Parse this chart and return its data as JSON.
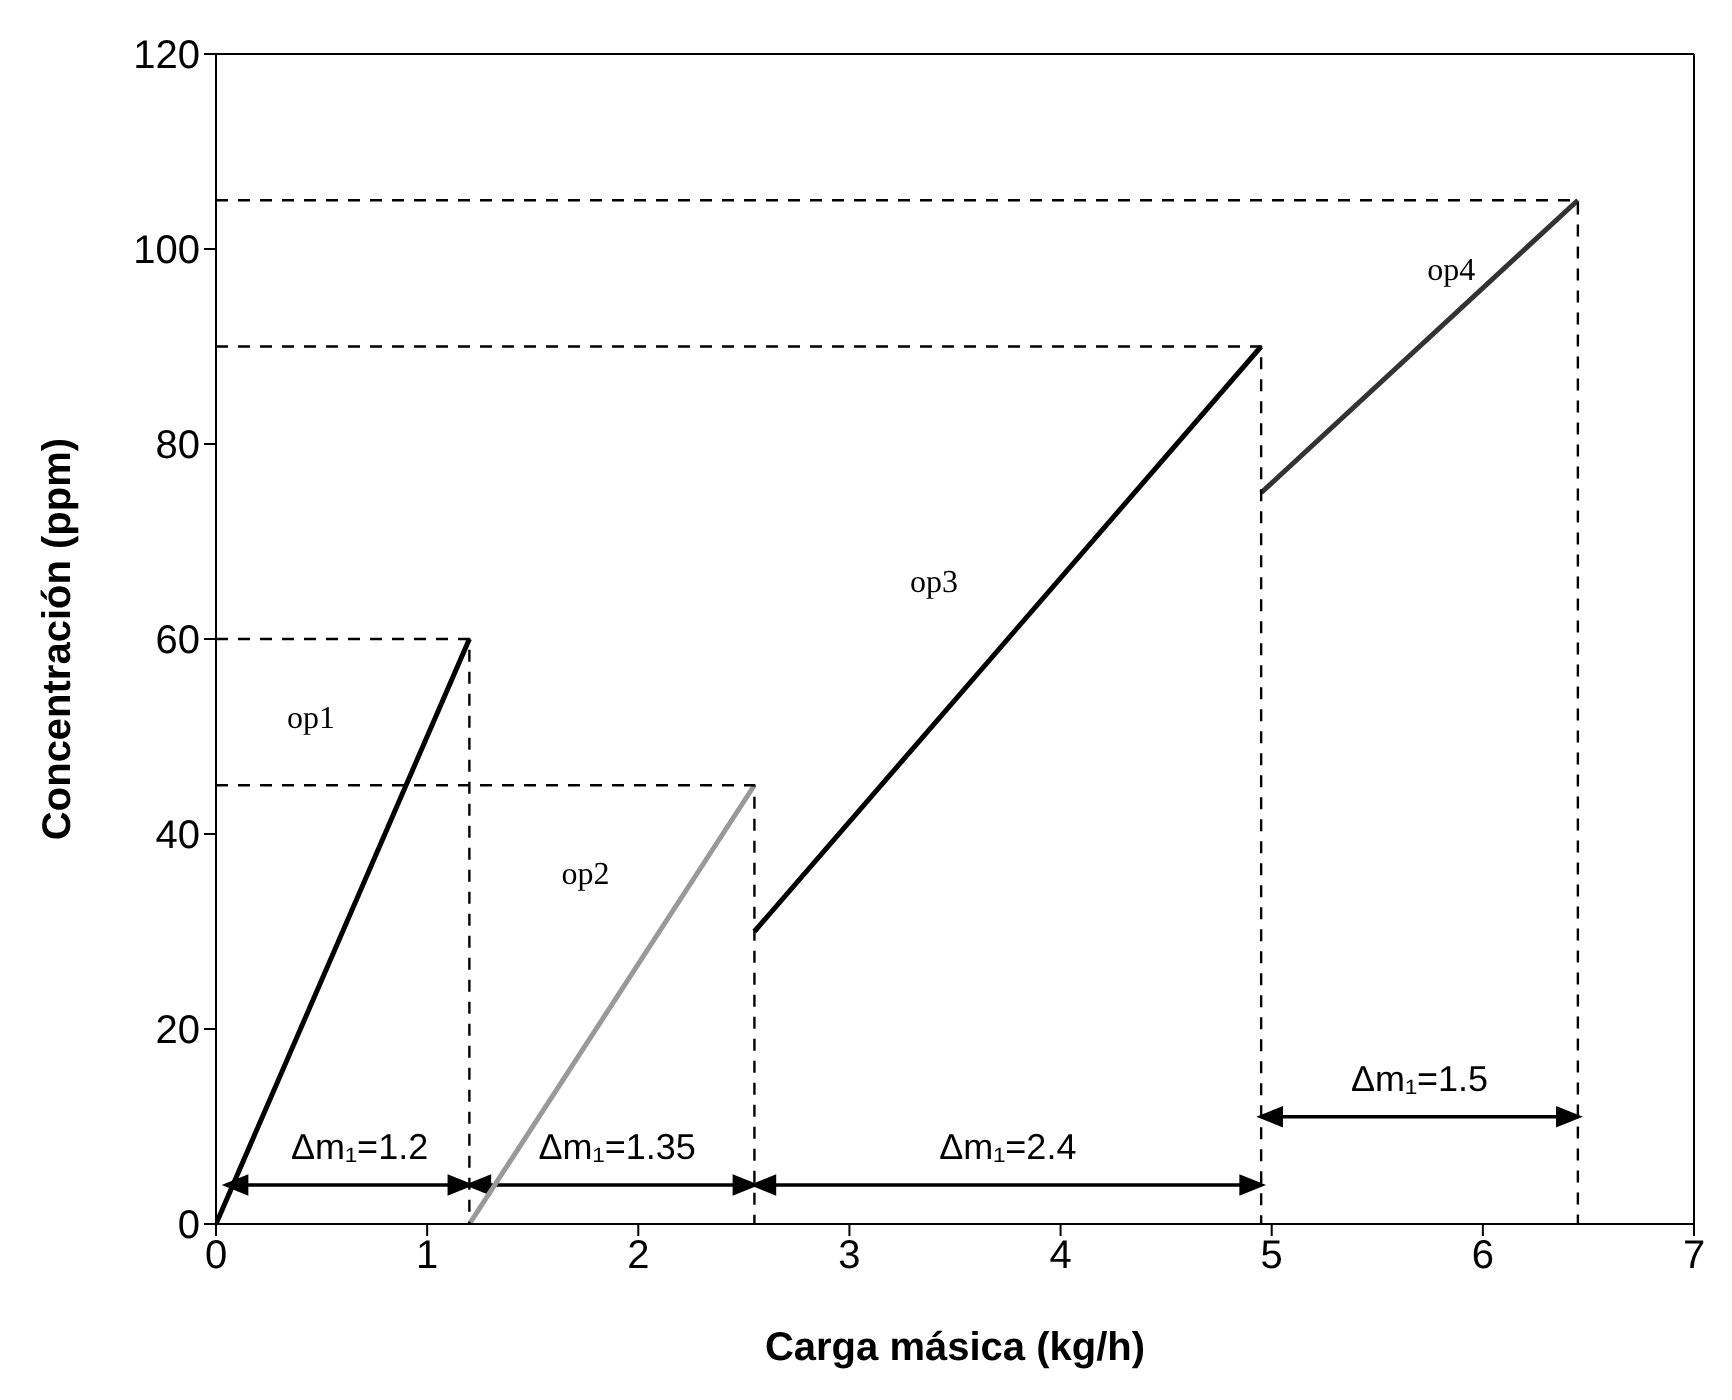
{
  "chart_data": {
    "type": "line",
    "xlabel": "Carga másica (kg/h)",
    "ylabel": "Concentración (ppm)",
    "xlim": [
      0,
      7
    ],
    "xticks": [
      0,
      1,
      2,
      3,
      4,
      5,
      6,
      7
    ],
    "ylim": [
      0,
      120
    ],
    "yticks": [
      0,
      20,
      40,
      60,
      80,
      100,
      120
    ],
    "series": [
      {
        "color": "#000000",
        "x": [
          0,
          1.2
        ],
        "values": [
          0,
          60
        ]
      },
      {
        "color": "#999999",
        "x": [
          1.2,
          2.55
        ],
        "values": [
          0,
          45
        ]
      },
      {
        "color": "#000000",
        "x": [
          2.55,
          4.95
        ],
        "values": [
          30,
          90
        ]
      },
      {
        "color": "#333333",
        "x": [
          4.95,
          6.45
        ],
        "values": [
          75,
          105
        ]
      },
      {
        "color": "#000000",
        "line_style": "dashed",
        "x": [
          0,
          1.2,
          1.2
        ],
        "values": [
          60,
          60,
          0
        ]
      },
      {
        "color": "#000000",
        "line_style": "dashed",
        "x": [
          0,
          2.55,
          2.55
        ],
        "values": [
          45,
          45,
          0
        ]
      },
      {
        "color": "#000000",
        "line_style": "dashed",
        "x": [
          0,
          4.95,
          4.95
        ],
        "values": [
          90,
          90,
          0
        ]
      },
      {
        "color": "#000000",
        "line_style": "dashed",
        "x": [
          0,
          6.45,
          6.45
        ],
        "values": [
          105,
          105,
          0
        ]
      }
    ],
    "annotations": [
      "op1",
      "op2",
      "op3",
      "op4",
      "Δm₁=1.2",
      "Δm₁=1.35",
      "Δm₁=2.4",
      "Δm₁=1.5"
    ]
  }
}
